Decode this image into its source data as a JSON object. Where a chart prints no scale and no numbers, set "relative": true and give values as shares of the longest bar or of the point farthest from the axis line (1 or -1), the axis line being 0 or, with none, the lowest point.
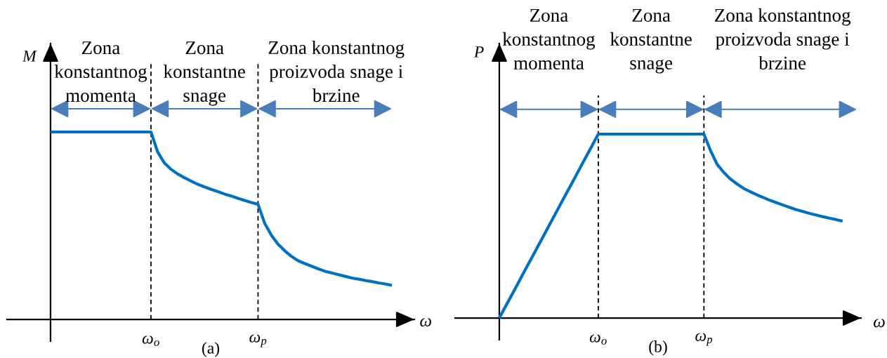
{
  "chart_data": [
    {
      "type": "line",
      "title": "(a)",
      "xlabel": "ω",
      "ylabel": "M",
      "relative": true,
      "tick_labels": "x",
      "annotations": [
        "Zona\nkonstantnog\nmomenta",
        "Zona\nkonstantne\nsnage",
        "Zona konstantnog\nproizvoda snage i\nbrzine"
      ],
      "categories": [
        null,
        null,
        null,
        null,
        null,
        null,
        null,
        null,
        null,
        null,
        null,
        null,
        null,
        null,
        null,
        "ω$_{o}$",
        null,
        null,
        null,
        null,
        null,
        null,
        null,
        null,
        null,
        null,
        null,
        null,
        null,
        null,
        null,
        "ω$_{p}$",
        null,
        null,
        null,
        null,
        null,
        null,
        null,
        null,
        null,
        null,
        null,
        null,
        null,
        null,
        null,
        null,
        null,
        null,
        null,
        null
      ],
      "ref_lines": [
        {
          "axis": "x",
          "value": "ω$_{o}$",
          "color": "#000000",
          "line_style": "dashed"
        },
        {
          "axis": "x",
          "value": "ω$_{p}$",
          "color": "#000000",
          "line_style": "dashed"
        }
      ],
      "series": [
        {
          "color": "#0070c0",
          "values": [
            1,
            1,
            1,
            1,
            1,
            1,
            1,
            1,
            1,
            1,
            1,
            1,
            1,
            1,
            1,
            1,
            0.894,
            0.835,
            0.801,
            0.776,
            0.756,
            0.738,
            0.721,
            0.707,
            0.694,
            0.682,
            0.669,
            0.658,
            0.646,
            0.635,
            0.624,
            0.614,
            0.512,
            0.449,
            0.401,
            0.366,
            0.336,
            0.313,
            0.298,
            0.284,
            0.27,
            0.257,
            0.248,
            0.239,
            0.23,
            0.221,
            0.215,
            0.208,
            0.202,
            0.195,
            0.189,
            0.182
          ]
        }
      ]
    },
    {
      "type": "line",
      "title": "(b)",
      "xlabel": "ω",
      "ylabel": "P",
      "relative": true,
      "tick_labels": "x",
      "annotations": [
        "Zona\nkonstantnog\nmomenta",
        "Zona\nkonstantne\nsnage",
        "Zona konstantnog\nproizvoda snage i\nbrzine"
      ],
      "categories": [
        null,
        null,
        null,
        null,
        null,
        null,
        null,
        null,
        null,
        null,
        null,
        null,
        null,
        null,
        null,
        "ω$_{o}$",
        null,
        null,
        null,
        null,
        null,
        null,
        null,
        null,
        null,
        null,
        null,
        null,
        null,
        null,
        null,
        "ω$_{p}$",
        null,
        null,
        null,
        null,
        null,
        null,
        null,
        null,
        null,
        null,
        null,
        null,
        null,
        null,
        null,
        null,
        null,
        null,
        null,
        null,
        null
      ],
      "ref_lines": [
        {
          "axis": "x",
          "value": "ω$_{o}$",
          "color": "#000000",
          "line_style": "dashed"
        },
        {
          "axis": "x",
          "value": "ω$_{p}$",
          "color": "#000000",
          "line_style": "dashed"
        }
      ],
      "series": [
        {
          "color": "#0070c0",
          "values": [
            0,
            0.067,
            0.133,
            0.2,
            0.267,
            0.333,
            0.4,
            0.467,
            0.533,
            0.6,
            0.667,
            0.733,
            0.8,
            0.867,
            0.933,
            1,
            1,
            1,
            1,
            1,
            1,
            1,
            1,
            1,
            1,
            1,
            1,
            1,
            1,
            1,
            1,
            1,
            0.91,
            0.835,
            0.792,
            0.756,
            0.729,
            0.705,
            0.687,
            0.67,
            0.655,
            0.64,
            0.627,
            0.614,
            0.601,
            0.589,
            0.579,
            0.569,
            0.56,
            0.551,
            0.543,
            0.535,
            0.527
          ]
        }
      ]
    }
  ]
}
